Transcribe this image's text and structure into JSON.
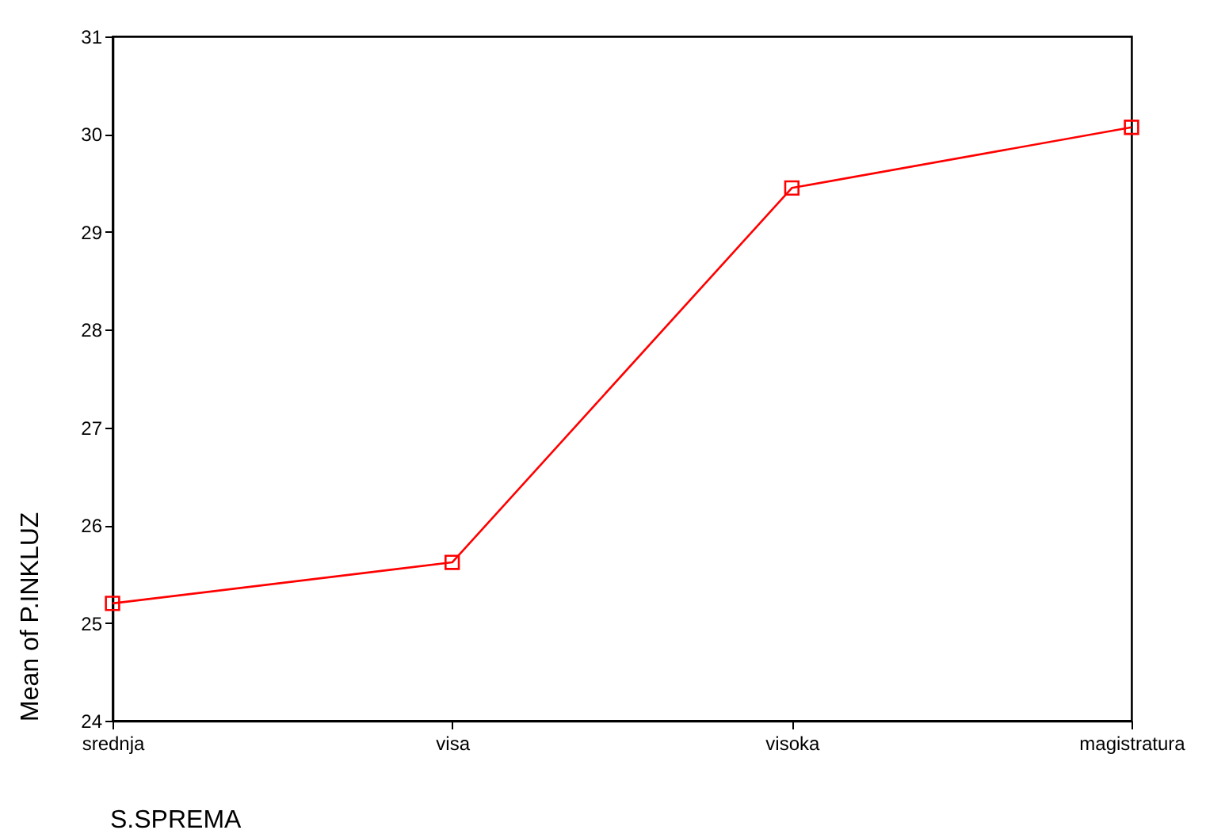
{
  "chart_data": {
    "type": "line",
    "xlabel": "S.SPREMA",
    "ylabel": "Mean of P.INKLUZ",
    "categories": [
      "srednja",
      "visa",
      "visoka",
      "magistratura"
    ],
    "series": [
      {
        "color": "#ff0000",
        "values": [
          25.2,
          25.62,
          29.45,
          30.07
        ]
      }
    ],
    "ylim": [
      24,
      31
    ],
    "yticks": [
      24,
      25,
      26,
      27,
      28,
      29,
      30,
      31
    ],
    "grid": false,
    "legend": false,
    "marker": "square",
    "line_style": "solid"
  }
}
